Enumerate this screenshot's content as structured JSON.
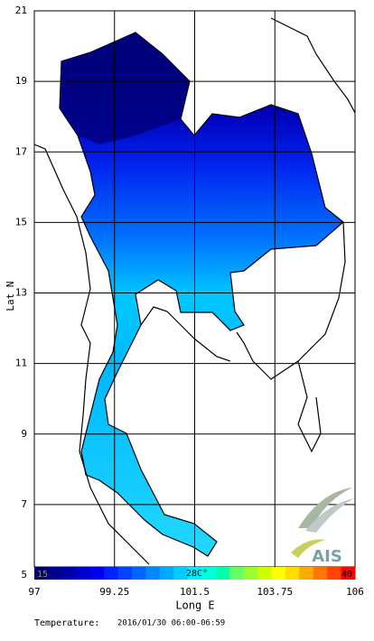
{
  "map": {
    "ylabel": "Lat N",
    "xlabel": "Long E",
    "xlim": [
      97,
      106
    ],
    "ylim": [
      5,
      21
    ],
    "xticks": [
      97,
      99.25,
      101.5,
      103.75,
      106
    ],
    "yticks": [
      5,
      7,
      9,
      11,
      13,
      15,
      17,
      19,
      21
    ]
  },
  "colorbar": {
    "min_label": "15",
    "mid_label": "28C°",
    "max_label": "40",
    "colors": [
      "#000066",
      "#00008b",
      "#0000aa",
      "#0000cc",
      "#0000ee",
      "#0022ff",
      "#0044ff",
      "#0066ff",
      "#0088ff",
      "#00aaff",
      "#00ccff",
      "#00eeff",
      "#00ffdd",
      "#00ffaa",
      "#66ff66",
      "#99ff33",
      "#ccff00",
      "#ffff00",
      "#ffdd00",
      "#ffaa00",
      "#ff7700",
      "#ff4400",
      "#ff0000"
    ]
  },
  "footer": {
    "label": "Temperature:",
    "datetime": "2016/01/30 06:00-06:59"
  },
  "logo": {
    "text": "AIS"
  }
}
